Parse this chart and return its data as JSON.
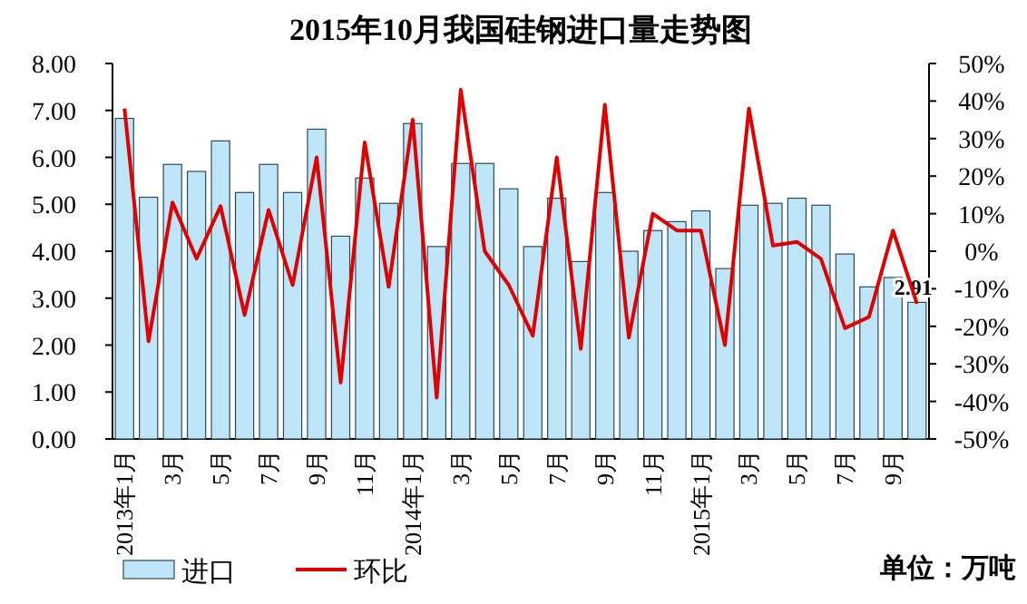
{
  "chart_data": {
    "type": "bar",
    "title": "2015年10月我国硅钢进口量走势图",
    "categories": [
      "2013年1月",
      null,
      "3月",
      null,
      "5月",
      null,
      "7月",
      null,
      "9月",
      null,
      "11月",
      null,
      "2014年1月",
      null,
      "3月",
      null,
      "5月",
      null,
      "7月",
      null,
      "9月",
      null,
      "11月",
      null,
      "2015年1月",
      null,
      "3月",
      null,
      "5月",
      null,
      "7月",
      null,
      "9月",
      null
    ],
    "series": [
      {
        "name": "进口",
        "color": "#bfe6f8",
        "values": [
          6.83,
          5.15,
          5.85,
          5.7,
          6.35,
          5.25,
          5.85,
          5.25,
          6.6,
          4.32,
          5.56,
          5.02,
          6.72,
          4.1,
          5.87,
          5.87,
          5.33,
          4.1,
          5.13,
          3.78,
          5.25,
          4.0,
          4.44,
          4.63,
          4.86,
          3.63,
          4.98,
          5.02,
          5.13,
          4.98,
          3.94,
          3.24,
          3.44,
          2.91
        ],
        "value_labels": [
          null,
          null,
          null,
          null,
          null,
          null,
          null,
          null,
          null,
          null,
          null,
          null,
          null,
          null,
          null,
          null,
          null,
          null,
          null,
          null,
          null,
          null,
          null,
          null,
          null,
          null,
          null,
          null,
          null,
          null,
          null,
          null,
          null,
          "2.91"
        ]
      },
      {
        "name": "环比",
        "type": "line",
        "axis": "y2",
        "color": "#e00000",
        "values": [
          38,
          -24,
          13,
          -2,
          12,
          -17,
          11,
          -9,
          25,
          -35,
          29,
          -9.5,
          35,
          -39,
          43,
          0,
          -9,
          -22.5,
          25,
          -26,
          39,
          -23,
          10,
          5.5,
          5.5,
          -25,
          38,
          1.5,
          2.5,
          -2,
          -20.5,
          -17.5,
          5.5,
          -14
        ]
      }
    ],
    "ylim": [
      0,
      8
    ],
    "yticks": [
      {
        "value": 0,
        "label": "0.00"
      },
      {
        "value": 1,
        "label": "1.00"
      },
      {
        "value": 2,
        "label": "2.00"
      },
      {
        "value": 3,
        "label": "3.00"
      },
      {
        "value": 4,
        "label": "4.00"
      },
      {
        "value": 5,
        "label": "5.00"
      },
      {
        "value": 6,
        "label": "6.00"
      },
      {
        "value": 7,
        "label": "7.00"
      },
      {
        "value": 8,
        "label": "8.00"
      }
    ],
    "y2lim": [
      -50,
      50
    ],
    "y2ticks": [
      {
        "value": -50,
        "label": "-50%"
      },
      {
        "value": -40,
        "label": "-40%"
      },
      {
        "value": -30,
        "label": "-30%"
      },
      {
        "value": -20,
        "label": "-20%"
      },
      {
        "value": -10,
        "label": "-10%"
      },
      {
        "value": 0,
        "label": "0%"
      },
      {
        "value": 10,
        "label": "10%"
      },
      {
        "value": 20,
        "label": "20%"
      },
      {
        "value": 30,
        "label": "30%"
      },
      {
        "value": 40,
        "label": "40%"
      },
      {
        "value": 50,
        "label": "50%"
      }
    ],
    "legend": "bottom left",
    "grid": false,
    "marker": "none",
    "line_style": "solid",
    "annotations": [
      "单位：万吨"
    ]
  }
}
